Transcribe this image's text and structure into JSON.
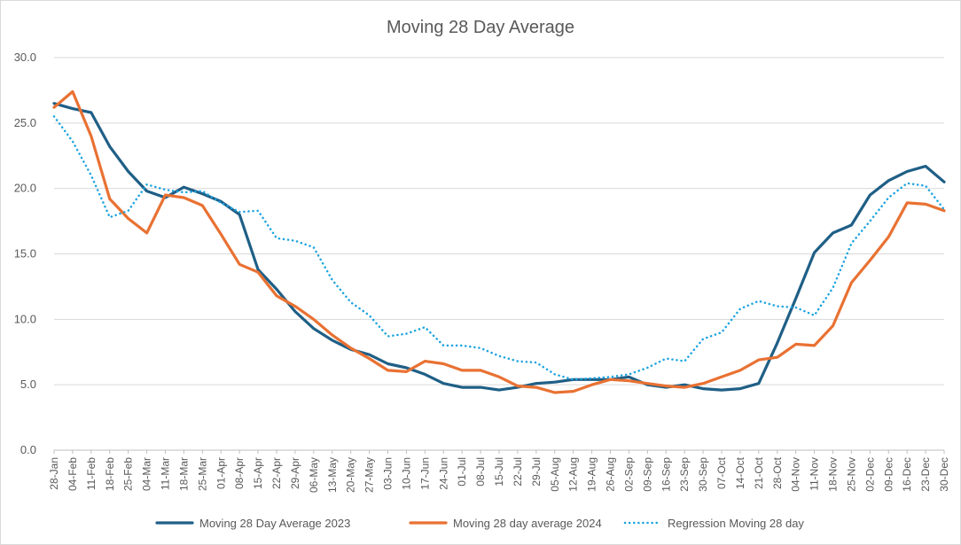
{
  "chart_data": {
    "type": "line",
    "title": "Moving 28 Day Average",
    "xlabel": "",
    "ylabel": "",
    "ylim": [
      0,
      30
    ],
    "yticks": [
      "0.0",
      "5.0",
      "10.0",
      "15.0",
      "20.0",
      "25.0",
      "30.0"
    ],
    "x_ticks": [
      "28-Jan",
      "04-Feb",
      "11-Feb",
      "18-Feb",
      "25-Feb",
      "04-Mar",
      "11-Mar",
      "18-Mar",
      "25-Mar",
      "01-Apr",
      "08-Apr",
      "15-Apr",
      "22-Apr",
      "29-Apr",
      "06-May",
      "13-May",
      "20-May",
      "27-May",
      "03-Jun",
      "10-Jun",
      "17-Jun",
      "24-Jun",
      "01-Jul",
      "08-Jul",
      "15-Jul",
      "22-Jul",
      "29-Jul",
      "05-Aug",
      "12-Aug",
      "19-Aug",
      "26-Aug",
      "02-Sep",
      "09-Sep",
      "16-Sep",
      "23-Sep",
      "30-Sep",
      "07-Oct",
      "14-Oct",
      "21-Oct",
      "28-Oct",
      "04-Nov",
      "11-Nov",
      "18-Nov",
      "25-Nov",
      "02-Dec",
      "09-Dec",
      "16-Dec",
      "23-Dec",
      "30-Dec"
    ],
    "grid": true,
    "legend_position": "bottom",
    "series": [
      {
        "name": "Moving 28 Day Average 2023",
        "color": "#1f5f86",
        "style": "solid",
        "values": [
          26.5,
          26.1,
          25.8,
          23.2,
          21.3,
          19.8,
          19.3,
          20.1,
          19.6,
          19.0,
          18.0,
          13.8,
          12.3,
          10.6,
          9.3,
          8.4,
          7.7,
          7.3,
          6.6,
          6.3,
          5.8,
          5.1,
          4.8,
          4.8,
          4.6,
          4.8,
          5.1,
          5.2,
          5.4,
          5.4,
          5.4,
          5.6,
          5.0,
          4.8,
          5.0,
          4.7,
          4.6,
          4.7,
          5.1,
          8.2,
          11.6,
          15.1,
          16.6,
          17.2,
          19.5,
          20.6,
          21.3,
          21.7,
          20.5
        ]
      },
      {
        "name": "Moving 28 day average 2024",
        "color": "#e97132",
        "style": "solid",
        "values": [
          26.2,
          27.4,
          24.0,
          19.2,
          17.7,
          16.6,
          19.5,
          19.3,
          18.7,
          16.5,
          14.2,
          13.6,
          11.8,
          11.0,
          10.0,
          8.8,
          7.8,
          7.0,
          6.1,
          6.0,
          6.8,
          6.6,
          6.1,
          6.1,
          5.6,
          4.9,
          4.8,
          4.4,
          4.5,
          5.0,
          5.4,
          5.3,
          5.1,
          4.9,
          4.8,
          5.1,
          5.6,
          6.1,
          6.9,
          7.1,
          8.1,
          8.0,
          9.5,
          12.8,
          14.5,
          16.3,
          18.9,
          18.8,
          18.3
        ]
      },
      {
        "name": "Regression Moving 28 day",
        "color": "#1aa3e0",
        "style": "dotted",
        "values": [
          25.5,
          23.6,
          21.0,
          17.8,
          18.3,
          20.3,
          19.9,
          19.7,
          19.8,
          18.9,
          18.2,
          18.3,
          16.2,
          16.0,
          15.5,
          13.0,
          11.3,
          10.3,
          8.7,
          8.9,
          9.4,
          8.0,
          8.0,
          7.8,
          7.2,
          6.8,
          6.7,
          5.8,
          5.4,
          5.5,
          5.6,
          5.8,
          6.3,
          7.0,
          6.8,
          8.5,
          9.0,
          10.8,
          11.4,
          11.0,
          10.9,
          10.3,
          12.4,
          15.8,
          17.5,
          19.3,
          20.4,
          20.2,
          18.4
        ]
      }
    ]
  }
}
